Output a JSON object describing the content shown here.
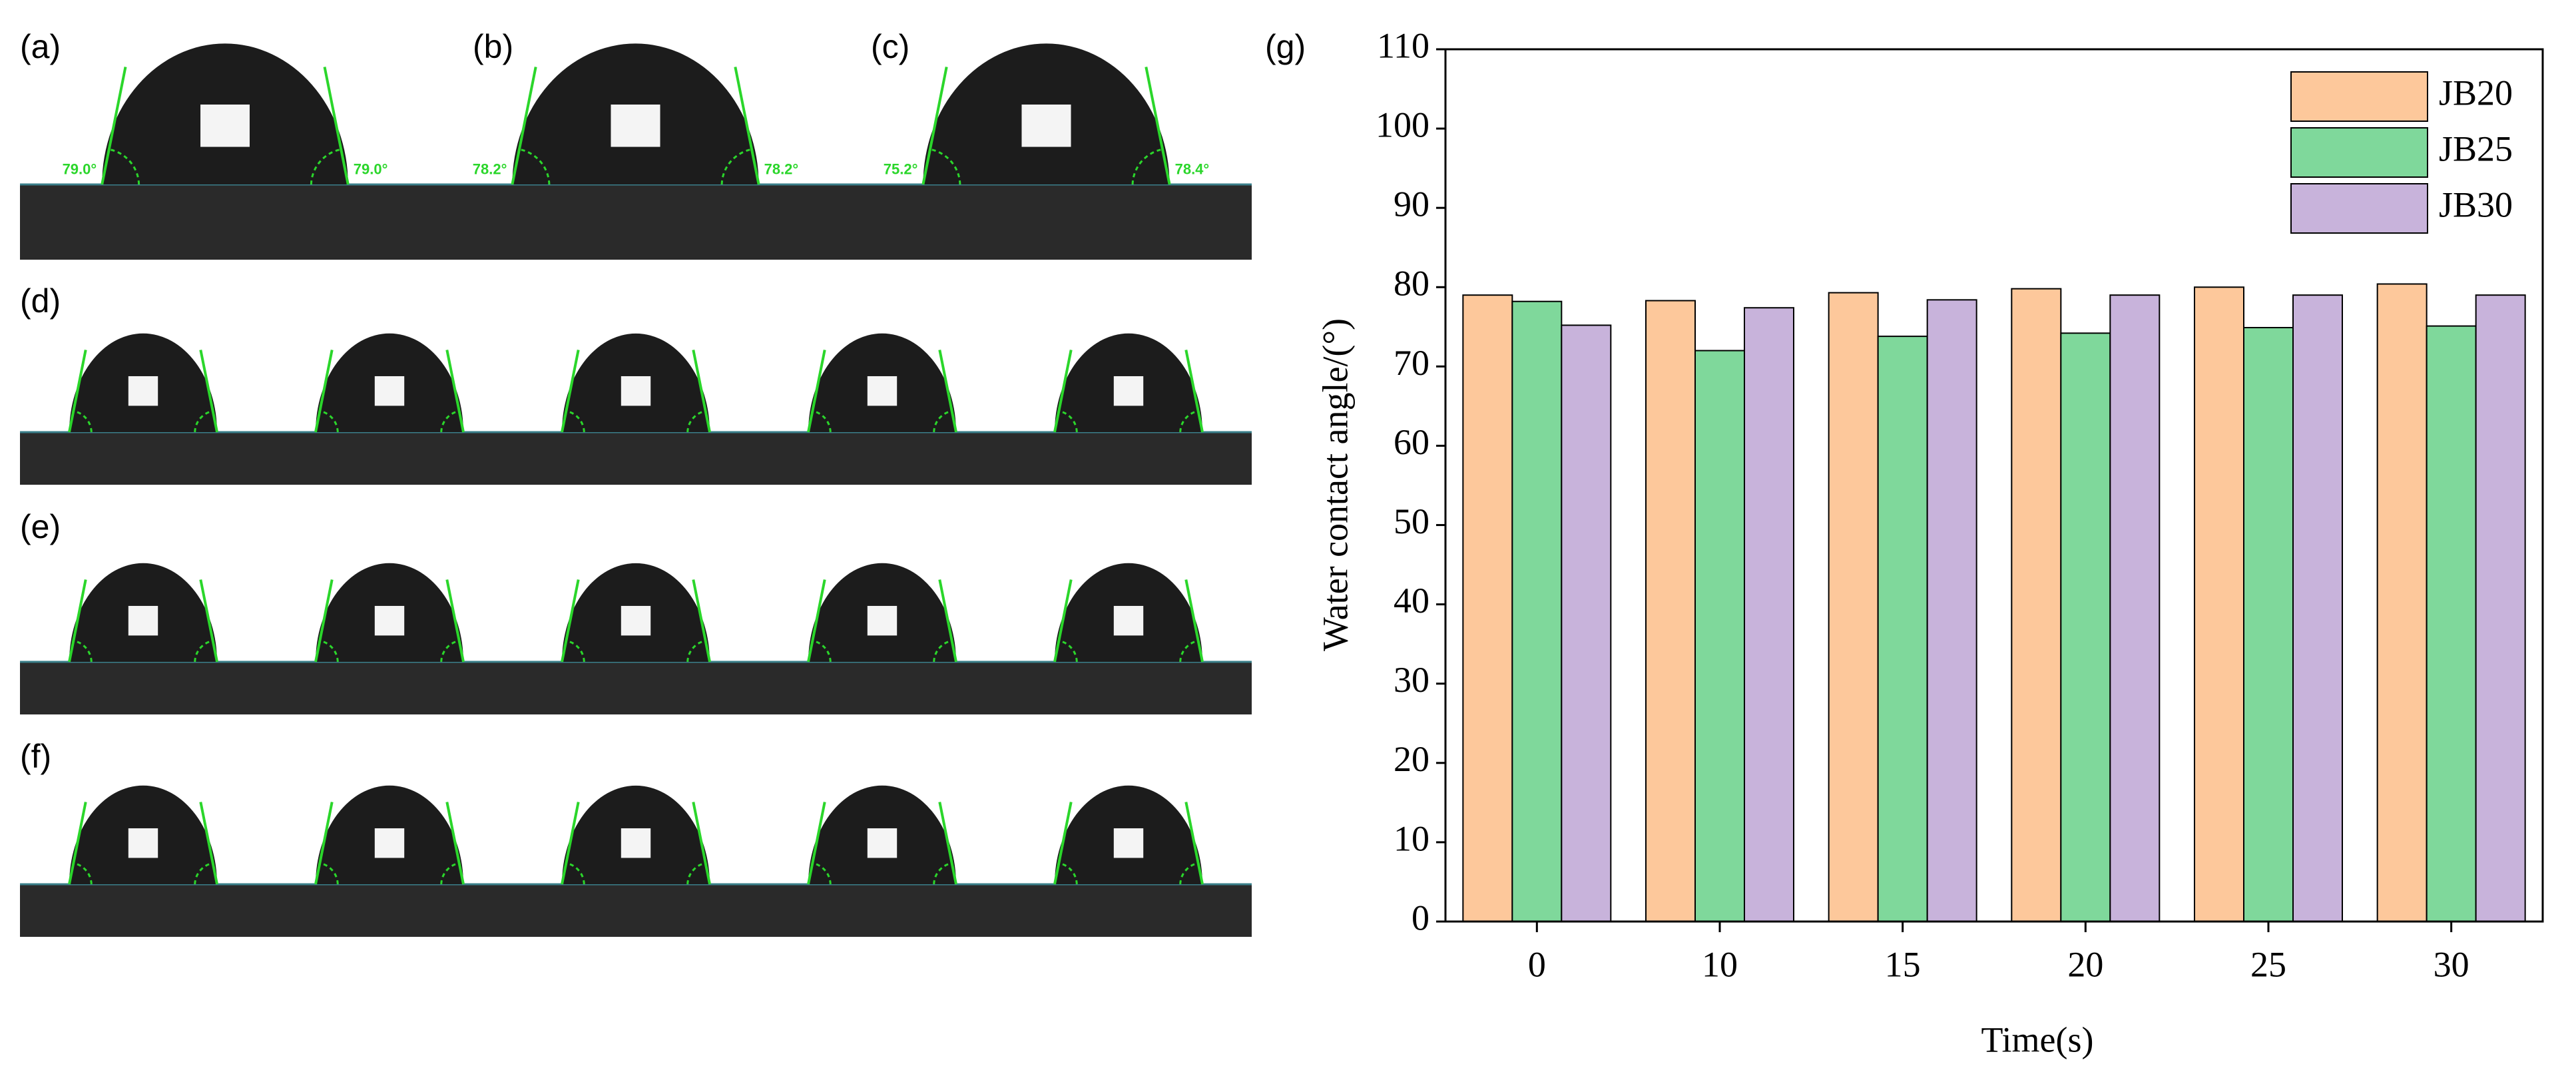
{
  "panels": [
    {
      "label": "(a)",
      "angles": [
        "79.0°",
        "79.0°"
      ]
    },
    {
      "label": "(b)",
      "angles": [
        "78.2°",
        "78.2°"
      ]
    },
    {
      "label": "(c)",
      "angles": [
        "75.2°",
        "78.4°"
      ]
    },
    {
      "label": "(d)"
    },
    {
      "label": "(e)"
    },
    {
      "label": "(f)"
    }
  ],
  "chart_data": {
    "type": "bar",
    "label": "(g)",
    "xlabel": "Time(s)",
    "ylabel": "Water contact angle/(°)",
    "categories": [
      "0",
      "10",
      "15",
      "20",
      "25",
      "30"
    ],
    "series": [
      {
        "name": "JB20",
        "color": "#fdc89b",
        "values": [
          79,
          78.3,
          79.3,
          79.8,
          80,
          80.4
        ]
      },
      {
        "name": "JB25",
        "color": "#7fd89b",
        "values": [
          78.2,
          72,
          73.8,
          74.2,
          74.9,
          75.1
        ]
      },
      {
        "name": "JB30",
        "color": "#c8b3db",
        "values": [
          75.2,
          77.4,
          78.4,
          79,
          79,
          79
        ]
      }
    ],
    "ylim": [
      0,
      110
    ],
    "yticks": [
      0,
      10,
      20,
      30,
      40,
      50,
      60,
      70,
      80,
      90,
      100,
      110
    ],
    "grid": false,
    "legend": "upper right"
  }
}
